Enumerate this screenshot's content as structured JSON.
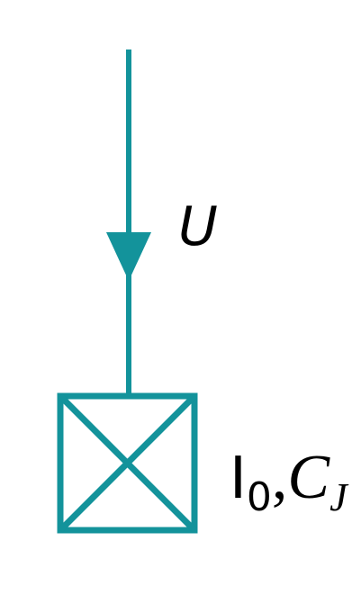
{
  "colors": {
    "stroke": "#13939b",
    "text": "#000000",
    "background": "#ffffff"
  },
  "labels": {
    "current_symbol": "U",
    "critical_current_base": "I",
    "critical_current_sub": "0",
    "separator": ",",
    "capacitance_base": "C",
    "capacitance_sub": "J"
  }
}
